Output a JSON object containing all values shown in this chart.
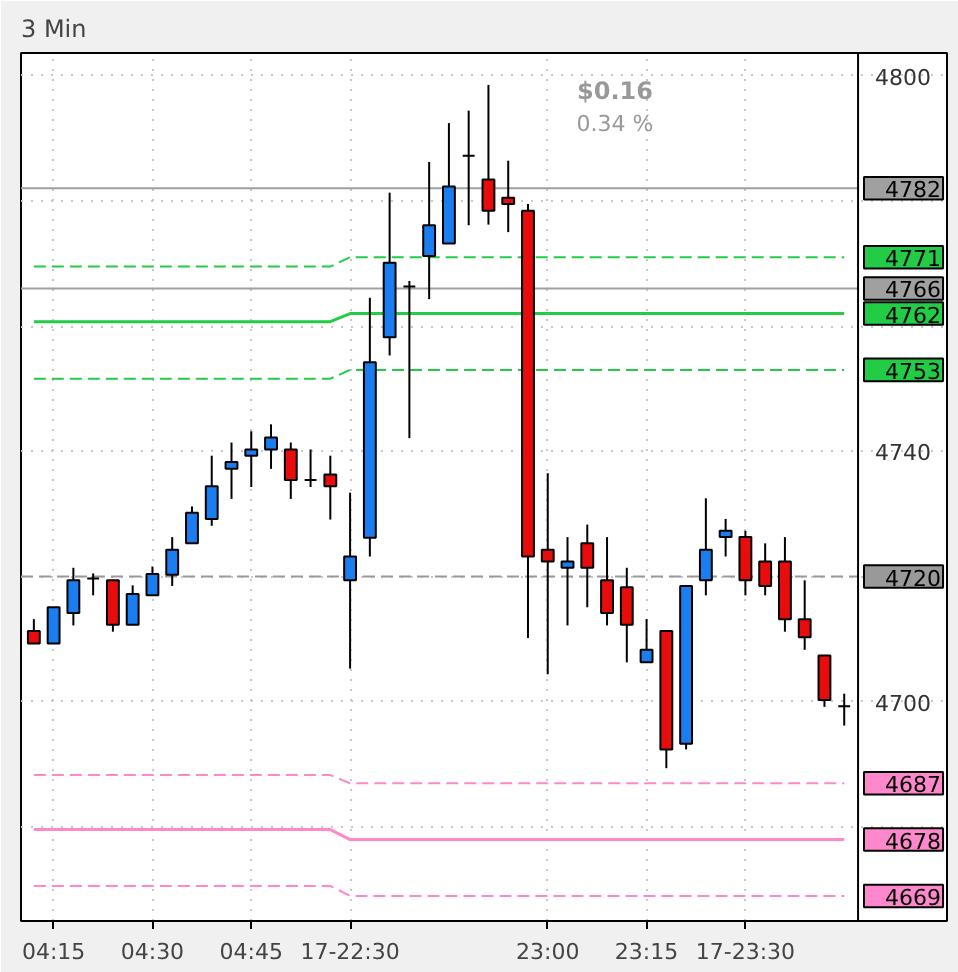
{
  "chart_data": {
    "type": "candlestick",
    "title": "3 Min",
    "categories": [
      null,
      "04:15",
      null,
      null,
      null,
      null,
      "04:30",
      null,
      null,
      null,
      null,
      "04:45",
      null,
      null,
      null,
      null,
      "17-22:30",
      null,
      null,
      null,
      null,
      null,
      null,
      null,
      null,
      null,
      "23:00",
      null,
      null,
      null,
      null,
      "23:15",
      null,
      null,
      null,
      null,
      "17-23:30",
      null,
      null,
      null,
      null,
      null
    ],
    "ohlc": [
      [
        4711.3,
        4713.2,
        4709.3,
        4709.3
      ],
      [
        4709.3,
        4715.1,
        4709.3,
        4715.1
      ],
      [
        4714.2,
        4721.4,
        4712.2,
        4719.4
      ],
      [
        4719.7,
        4720.5,
        4717.0,
        4719.7
      ],
      [
        4719.4,
        4719.4,
        4711.2,
        4712.3
      ],
      [
        4712.3,
        4718.6,
        4712.3,
        4717.2
      ],
      [
        4717.0,
        4721.6,
        4717.0,
        4720.4
      ],
      [
        4720.3,
        4726.3,
        4718.5,
        4724.3
      ],
      [
        4725.3,
        4731.2,
        4725.3,
        4730.2
      ],
      [
        4729.2,
        4739.3,
        4728.1,
        4734.4
      ],
      [
        4737.2,
        4741.4,
        4732.4,
        4738.3
      ],
      [
        4739.3,
        4743.2,
        4734.3,
        4740.3
      ],
      [
        4740.3,
        4744.3,
        4737.2,
        4742.2
      ],
      [
        4740.3,
        4741.4,
        4732.4,
        4735.4
      ],
      [
        4735.4,
        4740.3,
        4734.3,
        4735.4
      ],
      [
        4736.3,
        4739.3,
        4729.1,
        4734.4
      ],
      [
        4719.4,
        4733.4,
        4705.3,
        4723.2
      ],
      [
        4726.2,
        4764.5,
        4723.2,
        4754.2
      ],
      [
        4758.2,
        4781.3,
        4755.3,
        4770.1
      ],
      [
        4766.3,
        4767.2,
        4742.1,
        4766.3
      ],
      [
        4771.2,
        4786.2,
        4764.3,
        4776.1
      ],
      [
        4773.2,
        4792.4,
        4773.2,
        4782.3
      ],
      [
        4787.2,
        4794.4,
        4776.1,
        4787.2
      ],
      [
        4783.4,
        4798.5,
        4776.2,
        4778.4
      ],
      [
        4780.5,
        4786.4,
        4775.0,
        4779.5
      ],
      [
        4778.4,
        4779.5,
        4710.2,
        4723.2
      ],
      [
        4724.3,
        4736.5,
        4704.4,
        4722.4
      ],
      [
        4721.4,
        4726.3,
        4712.2,
        4722.4
      ],
      [
        4725.3,
        4728.3,
        4715.1,
        4721.4
      ],
      [
        4719.4,
        4726.3,
        4712.2,
        4714.2
      ],
      [
        4718.3,
        4721.4,
        4706.3,
        4712.3
      ],
      [
        4706.3,
        4713.2,
        4706.3,
        4708.3
      ],
      [
        4711.3,
        4711.3,
        4689.4,
        4692.4
      ],
      [
        4693.3,
        4718.5,
        4692.4,
        4718.5
      ],
      [
        4719.4,
        4732.5,
        4717.0,
        4724.3
      ],
      [
        4726.3,
        4729.2,
        4723.2,
        4727.3
      ],
      [
        4726.3,
        4727.3,
        4717.0,
        4719.4
      ],
      [
        4722.4,
        4725.3,
        4717.0,
        4718.5
      ],
      [
        4722.4,
        4726.3,
        4711.2,
        4713.2
      ],
      [
        4713.2,
        4719.4,
        4708.3,
        4710.3
      ],
      [
        4707.4,
        4707.4,
        4699.2,
        4700.3
      ],
      [
        4699.3,
        4701.3,
        4696.2,
        4699.3
      ]
    ],
    "colors": [
      "#e80c0c",
      "#1a7ef0",
      "#1a7ef0",
      "#000000",
      "#e80c0c",
      "#1a7ef0",
      "#1a7ef0",
      "#1a7ef0",
      "#1a7ef0",
      "#1a7ef0",
      "#1a7ef0",
      "#1a7ef0",
      "#1a7ef0",
      "#e80c0c",
      "#000000",
      "#e80c0c",
      "#1a7ef0",
      "#1a7ef0",
      "#1a7ef0",
      "#000000",
      "#1a7ef0",
      "#1a7ef0",
      "#000000",
      "#e80c0c",
      "#e80c0c",
      "#e80c0c",
      "#e80c0c",
      "#1a7ef0",
      "#e80c0c",
      "#e80c0c",
      "#e80c0c",
      "#1a7ef0",
      "#e80c0c",
      "#1a7ef0",
      "#1a7ef0",
      "#1a7ef0",
      "#e80c0c",
      "#e80c0c",
      "#e80c0c",
      "#e80c0c",
      "#e80c0c",
      "#000000"
    ],
    "series": [
      {
        "type": "line",
        "color": "#22cc44",
        "line_style": "dashed",
        "value_labels": [
          null,
          null,
          null,
          null,
          null,
          null,
          null,
          null,
          null,
          null,
          null,
          null,
          null,
          null,
          null,
          null,
          null,
          null,
          null,
          null,
          null,
          null,
          null,
          null,
          null,
          null,
          null,
          null,
          null,
          null,
          null,
          null,
          null,
          null,
          null,
          null,
          null,
          null,
          null,
          null,
          null,
          "4771"
        ],
        "values": [
          4769.5,
          4769.5,
          4769.5,
          4769.5,
          4769.5,
          4769.5,
          4769.5,
          4769.5,
          4769.5,
          4769.5,
          4769.5,
          4769.5,
          4769.5,
          4769.5,
          4769.5,
          4769.5,
          4771,
          4771,
          4771,
          4771,
          4771,
          4771,
          4771,
          4771,
          4771,
          4771,
          4771,
          4771,
          4771,
          4771,
          4771,
          4771,
          4771,
          4771,
          4771,
          4771,
          4771,
          4771,
          4771,
          4771,
          4771,
          4771
        ]
      },
      {
        "type": "line",
        "color": "#22cc44",
        "line_style": "solid",
        "value_labels": [
          null,
          null,
          null,
          null,
          null,
          null,
          null,
          null,
          null,
          null,
          null,
          null,
          null,
          null,
          null,
          null,
          null,
          null,
          null,
          null,
          null,
          null,
          null,
          null,
          null,
          null,
          null,
          null,
          null,
          null,
          null,
          null,
          null,
          null,
          null,
          null,
          null,
          null,
          null,
          null,
          null,
          "4762"
        ],
        "values": [
          4760.7,
          4760.7,
          4760.7,
          4760.7,
          4760.7,
          4760.7,
          4760.7,
          4760.7,
          4760.7,
          4760.7,
          4760.7,
          4760.7,
          4760.7,
          4760.7,
          4760.7,
          4760.7,
          4762,
          4762,
          4762,
          4762,
          4762,
          4762,
          4762,
          4762,
          4762,
          4762,
          4762,
          4762,
          4762,
          4762,
          4762,
          4762,
          4762,
          4762,
          4762,
          4762,
          4762,
          4762,
          4762,
          4762,
          4762,
          4762
        ]
      },
      {
        "type": "line",
        "color": "#22cc44",
        "line_style": "dashed",
        "value_labels": [
          null,
          null,
          null,
          null,
          null,
          null,
          null,
          null,
          null,
          null,
          null,
          null,
          null,
          null,
          null,
          null,
          null,
          null,
          null,
          null,
          null,
          null,
          null,
          null,
          null,
          null,
          null,
          null,
          null,
          null,
          null,
          null,
          null,
          null,
          null,
          null,
          null,
          null,
          null,
          null,
          null,
          "4753"
        ],
        "values": [
          4751.6,
          4751.6,
          4751.6,
          4751.6,
          4751.6,
          4751.6,
          4751.6,
          4751.6,
          4751.6,
          4751.6,
          4751.6,
          4751.6,
          4751.6,
          4751.6,
          4751.6,
          4751.6,
          4753,
          4753,
          4753,
          4753,
          4753,
          4753,
          4753,
          4753,
          4753,
          4753,
          4753,
          4753,
          4753,
          4753,
          4753,
          4753,
          4753,
          4753,
          4753,
          4753,
          4753,
          4753,
          4753,
          4753,
          4753,
          4753
        ]
      },
      {
        "type": "line",
        "color": "#ff88cc",
        "line_style": "dashed",
        "value_labels": [
          null,
          null,
          null,
          null,
          null,
          null,
          null,
          null,
          null,
          null,
          null,
          null,
          null,
          null,
          null,
          null,
          null,
          null,
          null,
          null,
          null,
          null,
          null,
          null,
          null,
          null,
          null,
          null,
          null,
          null,
          null,
          null,
          null,
          null,
          null,
          null,
          null,
          null,
          null,
          null,
          null,
          "4687"
        ],
        "values": [
          4688.3,
          4688.3,
          4688.3,
          4688.3,
          4688.3,
          4688.3,
          4688.3,
          4688.3,
          4688.3,
          4688.3,
          4688.3,
          4688.3,
          4688.3,
          4688.3,
          4688.3,
          4688.3,
          4687,
          4687,
          4687,
          4687,
          4687,
          4687,
          4687,
          4687,
          4687,
          4687,
          4687,
          4687,
          4687,
          4687,
          4687,
          4687,
          4687,
          4687,
          4687,
          4687,
          4687,
          4687,
          4687,
          4687,
          4687,
          4687
        ]
      },
      {
        "type": "line",
        "color": "#ff88cc",
        "line_style": "solid",
        "value_labels": [
          null,
          null,
          null,
          null,
          null,
          null,
          null,
          null,
          null,
          null,
          null,
          null,
          null,
          null,
          null,
          null,
          null,
          null,
          null,
          null,
          null,
          null,
          null,
          null,
          null,
          null,
          null,
          null,
          null,
          null,
          null,
          null,
          null,
          null,
          null,
          null,
          null,
          null,
          null,
          null,
          null,
          "4678"
        ],
        "values": [
          4679.6,
          4679.6,
          4679.6,
          4679.6,
          4679.6,
          4679.6,
          4679.6,
          4679.6,
          4679.6,
          4679.6,
          4679.6,
          4679.6,
          4679.6,
          4679.6,
          4679.6,
          4679.6,
          4678,
          4678,
          4678,
          4678,
          4678,
          4678,
          4678,
          4678,
          4678,
          4678,
          4678,
          4678,
          4678,
          4678,
          4678,
          4678,
          4678,
          4678,
          4678,
          4678,
          4678,
          4678,
          4678,
          4678,
          4678,
          4678
        ]
      },
      {
        "type": "line",
        "color": "#ff88cc",
        "line_style": "dashed",
        "value_labels": [
          null,
          null,
          null,
          null,
          null,
          null,
          null,
          null,
          null,
          null,
          null,
          null,
          null,
          null,
          null,
          null,
          null,
          null,
          null,
          null,
          null,
          null,
          null,
          null,
          null,
          null,
          null,
          null,
          null,
          null,
          null,
          null,
          null,
          null,
          null,
          null,
          null,
          null,
          null,
          null,
          null,
          "4669"
        ],
        "values": [
          4670.6,
          4670.6,
          4670.6,
          4670.6,
          4670.6,
          4670.6,
          4670.6,
          4670.6,
          4670.6,
          4670.6,
          4670.6,
          4670.6,
          4670.6,
          4670.6,
          4670.6,
          4670.6,
          4669,
          4669,
          4669,
          4669,
          4669,
          4669,
          4669,
          4669,
          4669,
          4669,
          4669,
          4669,
          4669,
          4669,
          4669,
          4669,
          4669,
          4669,
          4669,
          4669,
          4669,
          4669,
          4669,
          4669,
          4669,
          4669
        ]
      }
    ],
    "ylim": [
      4665,
      4803.6
    ],
    "yticks": [
      {
        "value": 4680,
        "label": null
      },
      4700,
      {
        "value": 4720,
        "label": null
      },
      4740,
      {
        "value": 4760,
        "label": null
      },
      {
        "value": 4780,
        "label": null
      },
      4800
    ],
    "ref_lines": [
      {
        "axis": "y",
        "value": 4720,
        "label": "4720",
        "color": "#999999",
        "line_style": "dashed"
      },
      {
        "axis": "y",
        "value": 4782,
        "label": "4782",
        "color": "#a0a0a0",
        "line_style": "solid"
      },
      {
        "axis": "y",
        "value": 4766,
        "label": "4766",
        "color": "#a0a0a0",
        "line_style": "solid"
      }
    ],
    "annotations": [
      "$0.16",
      "0.34 %"
    ],
    "grid": true
  }
}
